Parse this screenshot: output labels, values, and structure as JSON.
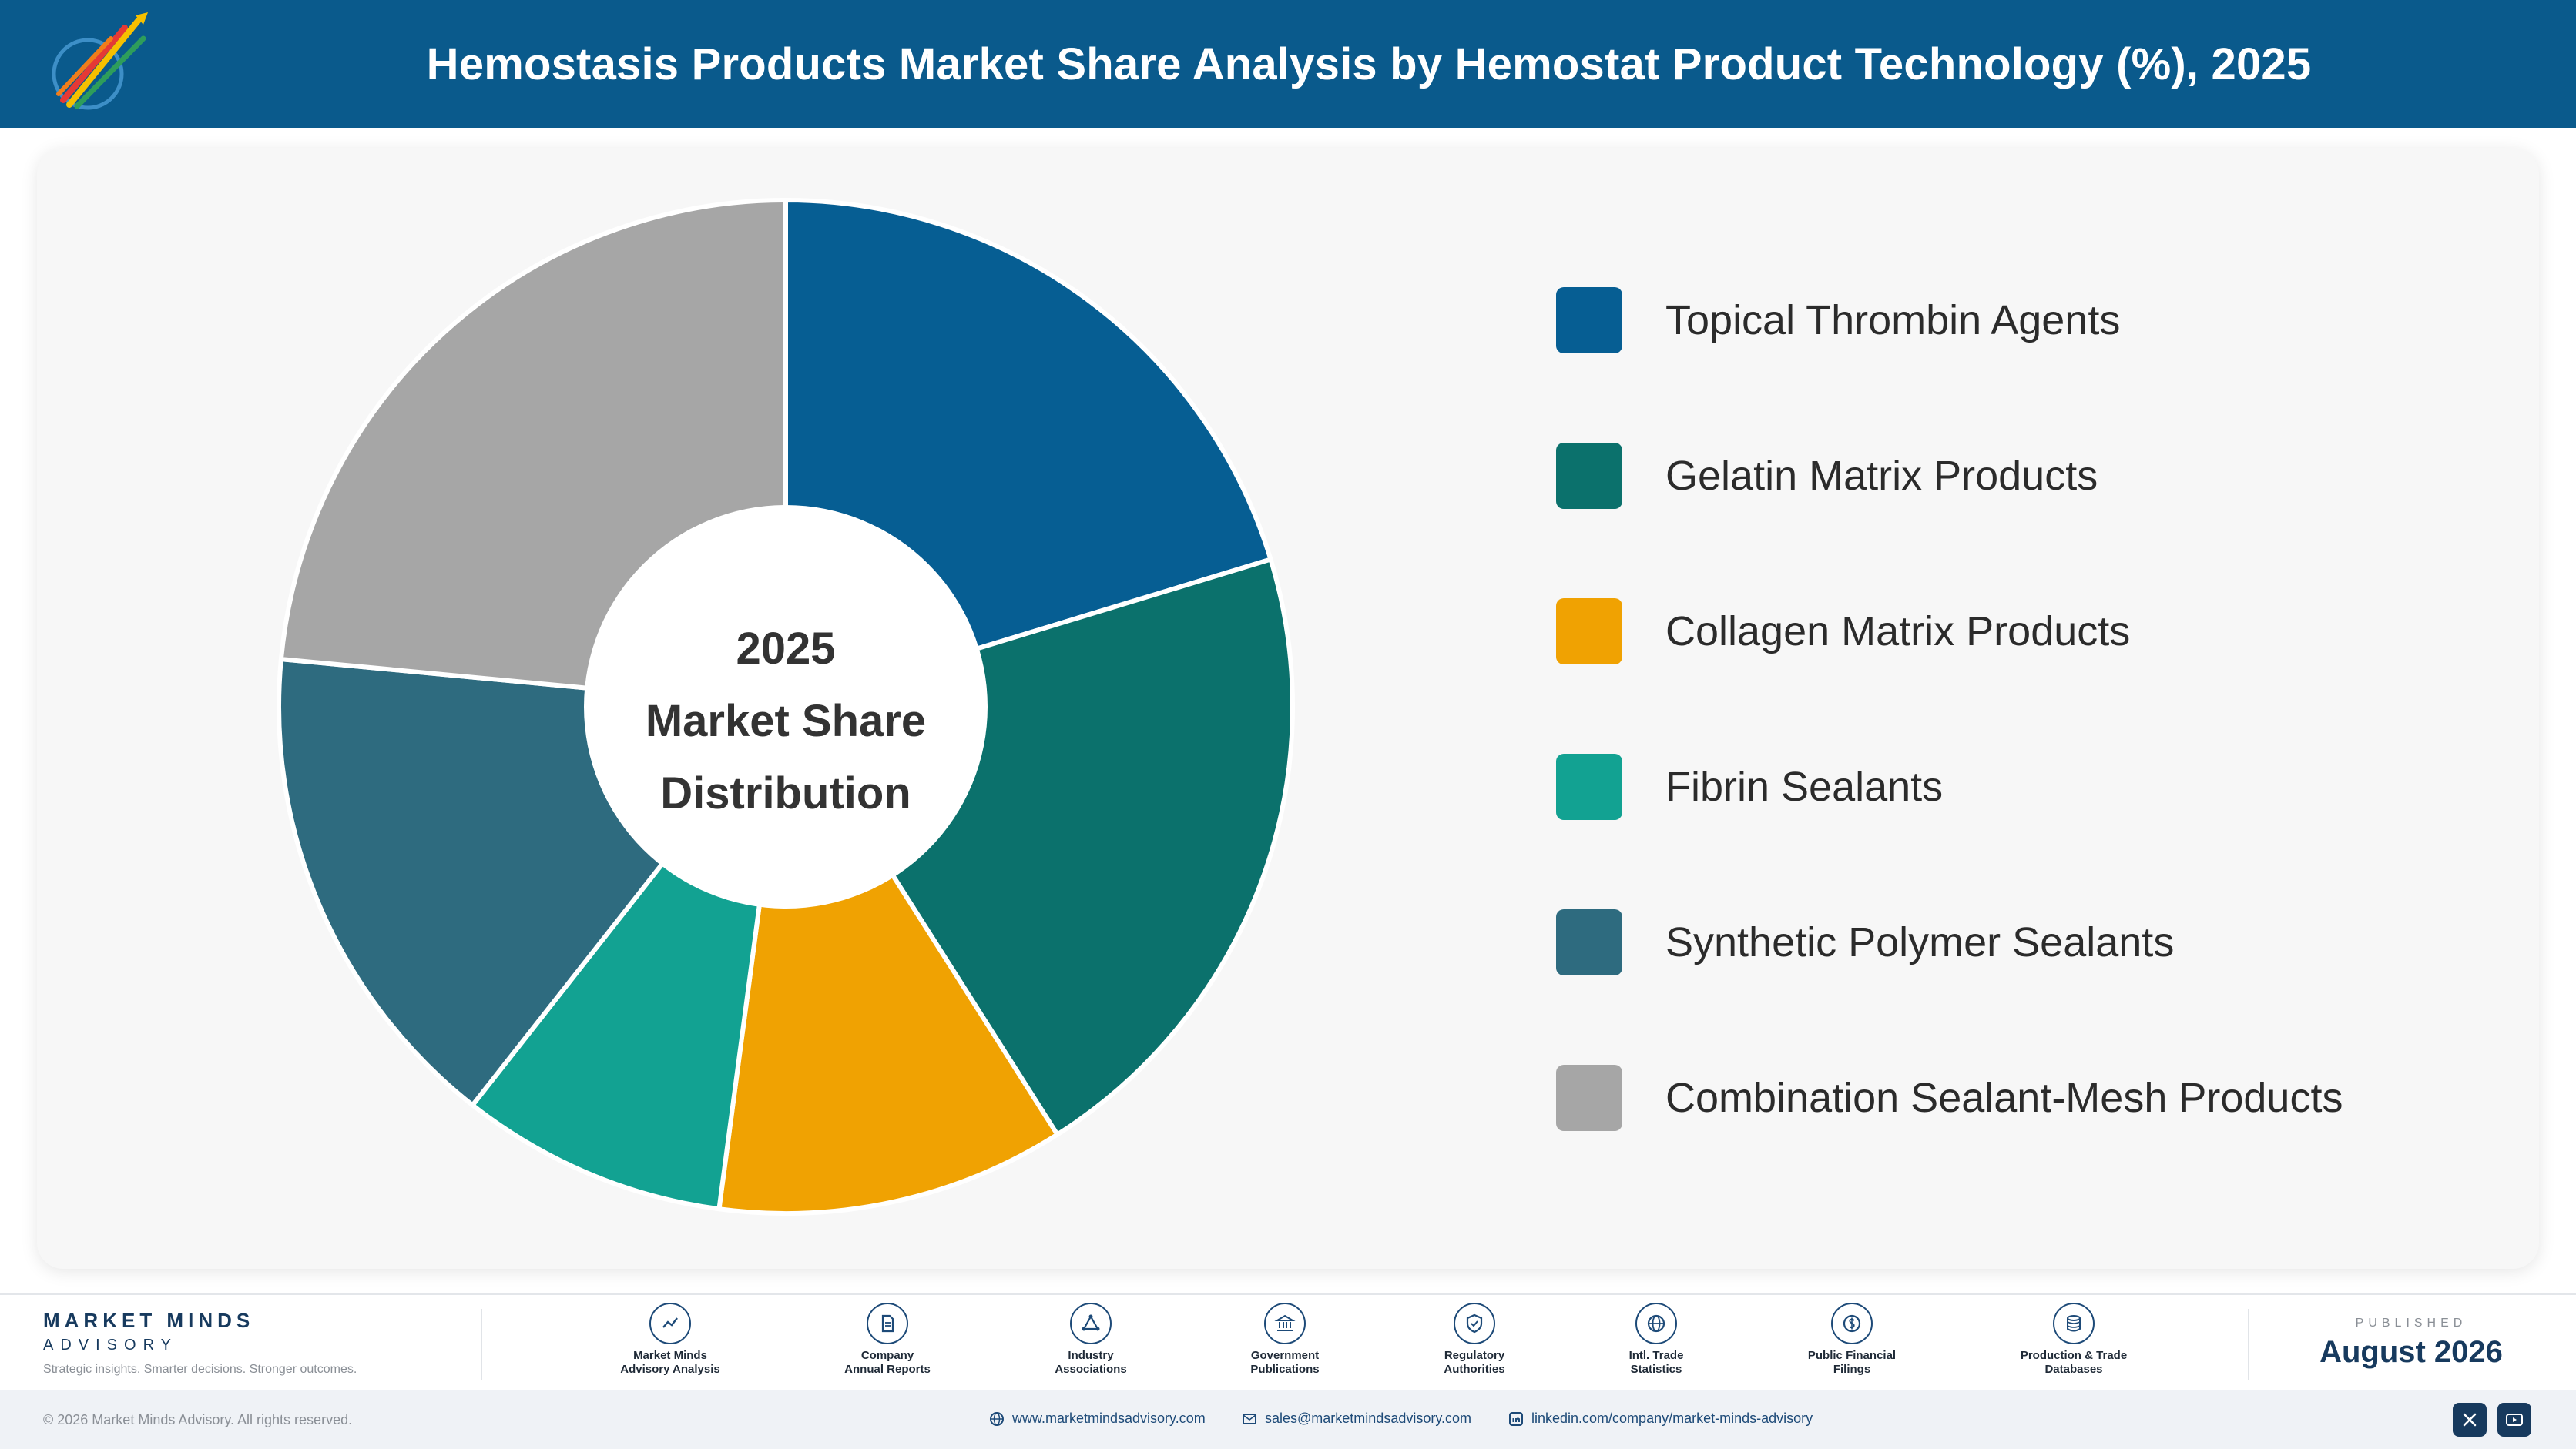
{
  "header": {
    "title": "Hemostasis Products Market Share Analysis by Hemostat Product Technology (%), 2025"
  },
  "chart_data": {
    "type": "pie",
    "style": "donut",
    "center_label": [
      "2025",
      "Market Share",
      "Distribution"
    ],
    "legend_position": "right",
    "categories": [
      "Topical Thrombin Agents",
      "Gelatin Matrix Products",
      "Collagen Matrix Products",
      "Fibrin Sealants",
      "Synthetic Polymer Sealants",
      "Combination Sealant-Mesh Products"
    ],
    "values": [
      20.3,
      20.7,
      11.1,
      8.5,
      15.9,
      23.5
    ],
    "colors": [
      "#065e93",
      "#0b716c",
      "#f0a202",
      "#12a292",
      "#2e6b7f",
      "#a6a6a6"
    ]
  },
  "footer": {
    "brand_name": "MARKET MINDS",
    "brand_sub": "ADVISORY",
    "tagline": "Strategic insights. Smarter decisions. Stronger outcomes.",
    "sources": [
      {
        "label": "Market Minds\nAdvisory Analysis",
        "icon": "chart-line-icon"
      },
      {
        "label": "Company\nAnnual Reports",
        "icon": "document-icon"
      },
      {
        "label": "Industry\nAssociations",
        "icon": "network-icon"
      },
      {
        "label": "Government\nPublications",
        "icon": "bank-icon"
      },
      {
        "label": "Regulatory\nAuthorities",
        "icon": "shield-check-icon"
      },
      {
        "label": "Intl. Trade\nStatistics",
        "icon": "globe-icon"
      },
      {
        "label": "Public Financial\nFilings",
        "icon": "dollar-icon"
      },
      {
        "label": "Production & Trade\nDatabases",
        "icon": "database-icon"
      }
    ],
    "published_label": "PUBLISHED",
    "published_date": "August 2026"
  },
  "bottom": {
    "copyright": "© 2026 Market Minds Advisory. All rights reserved.",
    "website": "www.marketmindsadvisory.com",
    "email": "sales@marketmindsadvisory.com",
    "linkedin": "linkedin.com/company/market-minds-advisory"
  }
}
